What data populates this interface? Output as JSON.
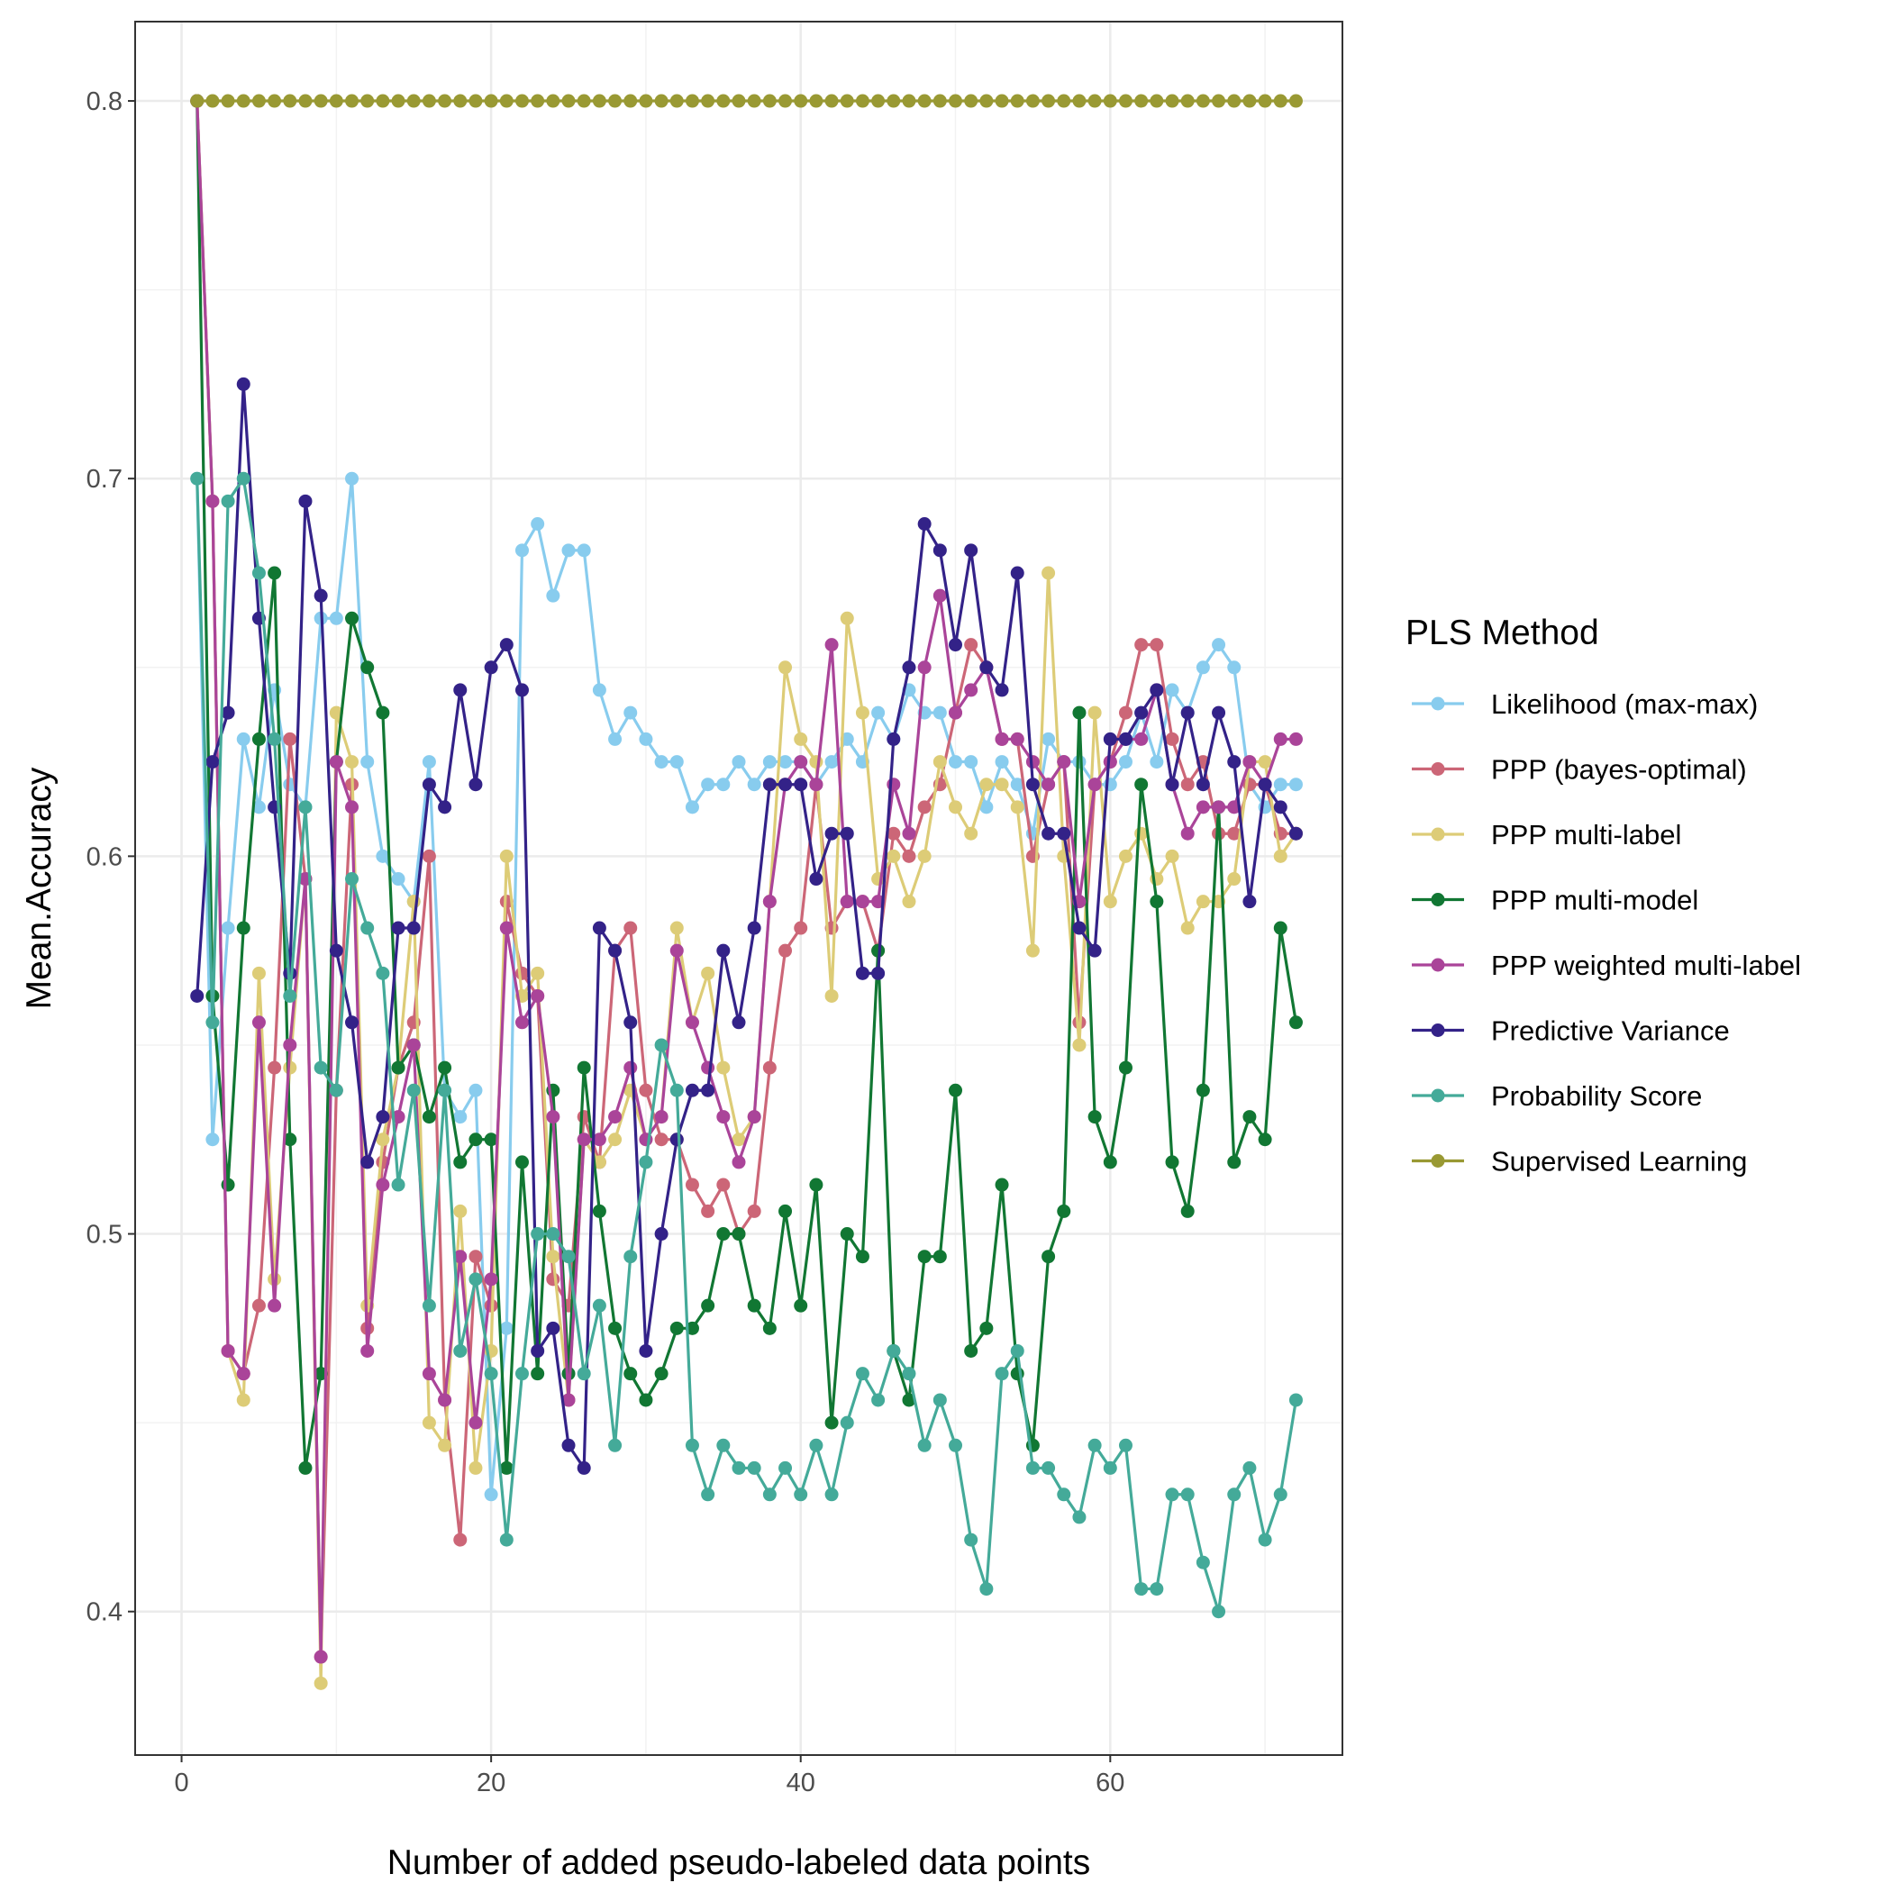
{
  "chart_data": {
    "type": "line",
    "title": "",
    "xlabel": "Number of added pseudo-labeled data points",
    "ylabel": "Mean.Accuracy",
    "xlim": [
      -3,
      75
    ],
    "ylim": [
      0.362,
      0.821
    ],
    "x_ticks": [
      0,
      20,
      40,
      60
    ],
    "y_ticks": [
      0.4,
      0.5,
      0.6,
      0.7,
      0.8
    ],
    "grid": true,
    "legend_title": "PLS Method",
    "legend_position": "right",
    "x": [
      1,
      2,
      3,
      4,
      5,
      6,
      7,
      8,
      9,
      10,
      11,
      12,
      13,
      14,
      15,
      16,
      17,
      18,
      19,
      20,
      21,
      22,
      23,
      24,
      25,
      26,
      27,
      28,
      29,
      30,
      31,
      32,
      33,
      34,
      35,
      36,
      37,
      38,
      39,
      40,
      41,
      42,
      43,
      44,
      45,
      46,
      47,
      48,
      49,
      50,
      51,
      52,
      53,
      54,
      55,
      56,
      57,
      58,
      59,
      60,
      61,
      62,
      63,
      64,
      65,
      66,
      67,
      68,
      69,
      70,
      71,
      72
    ],
    "series": [
      {
        "name": "Likelihood (max-max)",
        "color": "#88CCEE",
        "values": [
          0.7,
          0.525,
          0.581,
          0.631,
          0.613,
          0.644,
          0.619,
          0.613,
          0.663,
          0.663,
          0.7,
          0.625,
          0.6,
          0.594,
          0.588,
          0.625,
          0.538,
          0.531,
          0.538,
          0.431,
          0.475,
          0.681,
          0.688,
          0.669,
          0.681,
          0.681,
          0.644,
          0.631,
          0.638,
          0.631,
          0.625,
          0.625,
          0.613,
          0.619,
          0.619,
          0.625,
          0.619,
          0.625,
          0.625,
          0.625,
          0.619,
          0.625,
          0.631,
          0.625,
          0.638,
          0.631,
          0.644,
          0.638,
          0.638,
          0.625,
          0.625,
          0.613,
          0.625,
          0.619,
          0.606,
          0.631,
          0.625,
          0.625,
          0.619,
          0.619,
          0.625,
          0.638,
          0.625,
          0.644,
          0.638,
          0.65,
          0.656,
          0.65,
          0.619,
          0.613,
          0.619,
          0.619
        ]
      },
      {
        "name": "PPP (bayes-optimal)",
        "color": "#CC6677",
        "values": [
          0.8,
          0.694,
          0.469,
          0.463,
          0.481,
          0.544,
          0.631,
          0.594,
          0.388,
          0.538,
          0.619,
          0.475,
          0.519,
          0.544,
          0.556,
          0.6,
          0.456,
          0.419,
          0.494,
          0.481,
          0.588,
          0.569,
          0.563,
          0.488,
          0.481,
          0.531,
          0.519,
          0.575,
          0.581,
          0.538,
          0.525,
          0.525,
          0.513,
          0.506,
          0.513,
          0.5,
          0.506,
          0.544,
          0.575,
          0.581,
          0.619,
          0.581,
          0.588,
          0.588,
          0.575,
          0.606,
          0.6,
          0.613,
          0.619,
          0.638,
          0.656,
          0.65,
          0.631,
          0.631,
          0.6,
          0.619,
          0.625,
          0.556,
          0.619,
          0.625,
          0.638,
          0.656,
          0.656,
          0.631,
          0.619,
          0.625,
          0.606,
          0.606,
          0.619,
          0.619,
          0.606,
          0.606
        ]
      },
      {
        "name": "PPP multi-label",
        "color": "#DDCC77",
        "values": [
          0.8,
          0.694,
          0.469,
          0.456,
          0.569,
          0.488,
          0.544,
          0.594,
          0.381,
          0.638,
          0.625,
          0.481,
          0.525,
          0.544,
          0.588,
          0.45,
          0.444,
          0.506,
          0.438,
          0.469,
          0.6,
          0.563,
          0.569,
          0.494,
          0.456,
          0.525,
          0.519,
          0.525,
          0.538,
          0.525,
          0.531,
          0.581,
          0.556,
          0.569,
          0.544,
          0.525,
          0.531,
          0.588,
          0.65,
          0.631,
          0.625,
          0.563,
          0.663,
          0.638,
          0.594,
          0.6,
          0.588,
          0.6,
          0.625,
          0.613,
          0.606,
          0.619,
          0.619,
          0.613,
          0.575,
          0.675,
          0.6,
          0.55,
          0.638,
          0.588,
          0.6,
          0.606,
          0.594,
          0.6,
          0.581,
          0.588,
          0.588,
          0.594,
          0.625,
          0.625,
          0.6,
          0.606
        ]
      },
      {
        "name": "PPP multi-model",
        "color": "#117733",
        "values": [
          0.8,
          0.563,
          0.513,
          0.581,
          0.631,
          0.675,
          0.525,
          0.438,
          0.463,
          0.625,
          0.663,
          0.65,
          0.638,
          0.544,
          0.55,
          0.531,
          0.544,
          0.519,
          0.525,
          0.525,
          0.438,
          0.519,
          0.463,
          0.538,
          0.463,
          0.544,
          0.506,
          0.475,
          0.463,
          0.456,
          0.463,
          0.475,
          0.475,
          0.481,
          0.5,
          0.5,
          0.481,
          0.475,
          0.506,
          0.481,
          0.513,
          0.45,
          0.5,
          0.494,
          0.575,
          0.469,
          0.456,
          0.494,
          0.494,
          0.538,
          0.469,
          0.475,
          0.513,
          0.463,
          0.444,
          0.494,
          0.506,
          0.638,
          0.531,
          0.519,
          0.544,
          0.619,
          0.588,
          0.519,
          0.506,
          0.538,
          0.613,
          0.519,
          0.531,
          0.525,
          0.581,
          0.556
        ]
      },
      {
        "name": "PPP weighted multi-label",
        "color": "#AA4499",
        "values": [
          0.8,
          0.694,
          0.469,
          0.463,
          0.556,
          0.481,
          0.55,
          0.594,
          0.388,
          0.625,
          0.613,
          0.469,
          0.513,
          0.531,
          0.55,
          0.463,
          0.456,
          0.494,
          0.45,
          0.488,
          0.581,
          0.556,
          0.563,
          0.531,
          0.456,
          0.525,
          0.525,
          0.531,
          0.544,
          0.525,
          0.531,
          0.575,
          0.556,
          0.544,
          0.531,
          0.519,
          0.531,
          0.588,
          0.619,
          0.625,
          0.619,
          0.656,
          0.588,
          0.588,
          0.588,
          0.619,
          0.606,
          0.65,
          0.669,
          0.638,
          0.644,
          0.65,
          0.631,
          0.631,
          0.625,
          0.619,
          0.625,
          0.588,
          0.619,
          0.625,
          0.631,
          0.631,
          0.644,
          0.619,
          0.606,
          0.613,
          0.613,
          0.613,
          0.625,
          0.619,
          0.631,
          0.631
        ]
      },
      {
        "name": "Predictive Variance",
        "color": "#332288",
        "values": [
          0.563,
          0.625,
          0.638,
          0.725,
          0.663,
          0.613,
          0.569,
          0.694,
          0.669,
          0.575,
          0.556,
          0.519,
          0.531,
          0.581,
          0.581,
          0.619,
          0.613,
          0.644,
          0.619,
          0.65,
          0.656,
          0.644,
          0.469,
          0.475,
          0.444,
          0.438,
          0.581,
          0.575,
          0.556,
          0.469,
          0.5,
          0.525,
          0.538,
          0.538,
          0.575,
          0.556,
          0.581,
          0.619,
          0.619,
          0.619,
          0.594,
          0.606,
          0.606,
          0.569,
          0.569,
          0.631,
          0.65,
          0.688,
          0.681,
          0.656,
          0.681,
          0.65,
          0.644,
          0.675,
          0.619,
          0.606,
          0.606,
          0.581,
          0.575,
          0.631,
          0.631,
          0.638,
          0.644,
          0.619,
          0.638,
          0.619,
          0.638,
          0.625,
          0.588,
          0.619,
          0.613,
          0.606
        ]
      },
      {
        "name": "Probability Score",
        "color": "#44AA99",
        "values": [
          0.7,
          0.556,
          0.694,
          0.7,
          0.675,
          0.631,
          0.563,
          0.613,
          0.544,
          0.538,
          0.594,
          0.581,
          0.569,
          0.513,
          0.538,
          0.481,
          0.538,
          0.469,
          0.488,
          0.463,
          0.419,
          0.463,
          0.5,
          0.5,
          0.494,
          0.463,
          0.481,
          0.444,
          0.494,
          0.519,
          0.55,
          0.538,
          0.444,
          0.431,
          0.444,
          0.438,
          0.438,
          0.431,
          0.438,
          0.431,
          0.444,
          0.431,
          0.45,
          0.463,
          0.456,
          0.469,
          0.463,
          0.444,
          0.456,
          0.444,
          0.419,
          0.406,
          0.463,
          0.469,
          0.438,
          0.438,
          0.431,
          0.425,
          0.444,
          0.438,
          0.444,
          0.406,
          0.406,
          0.431,
          0.431,
          0.413,
          0.4,
          0.431,
          0.438,
          0.419,
          0.431,
          0.456
        ]
      },
      {
        "name": "Supervised Learning",
        "color": "#999933",
        "values": [
          0.8,
          0.8,
          0.8,
          0.8,
          0.8,
          0.8,
          0.8,
          0.8,
          0.8,
          0.8,
          0.8,
          0.8,
          0.8,
          0.8,
          0.8,
          0.8,
          0.8,
          0.8,
          0.8,
          0.8,
          0.8,
          0.8,
          0.8,
          0.8,
          0.8,
          0.8,
          0.8,
          0.8,
          0.8,
          0.8,
          0.8,
          0.8,
          0.8,
          0.8,
          0.8,
          0.8,
          0.8,
          0.8,
          0.8,
          0.8,
          0.8,
          0.8,
          0.8,
          0.8,
          0.8,
          0.8,
          0.8,
          0.8,
          0.8,
          0.8,
          0.8,
          0.8,
          0.8,
          0.8,
          0.8,
          0.8,
          0.8,
          0.8,
          0.8,
          0.8,
          0.8,
          0.8,
          0.8,
          0.8,
          0.8,
          0.8,
          0.8,
          0.8,
          0.8,
          0.8,
          0.8,
          0.8
        ]
      }
    ]
  }
}
